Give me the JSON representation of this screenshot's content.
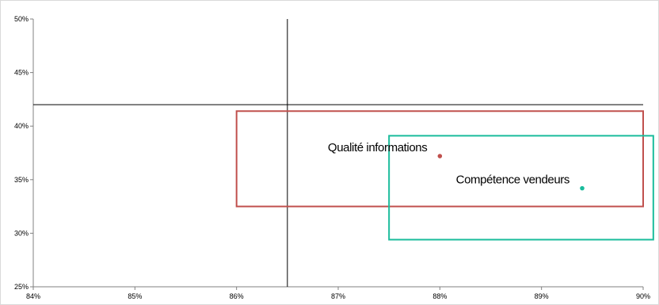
{
  "chart_data": {
    "type": "scatter",
    "title": "",
    "xlabel": "",
    "ylabel": "",
    "xlim": [
      0.84,
      0.9
    ],
    "ylim": [
      0.25,
      0.5
    ],
    "x_ticks": [
      "84%",
      "85%",
      "86%",
      "87%",
      "88%",
      "89%",
      "90%"
    ],
    "y_ticks": [
      "25%",
      "30%",
      "35%",
      "40%",
      "45%",
      "50%"
    ],
    "grid": false,
    "legend": "none",
    "reference_lines": {
      "vertical_x": 0.865,
      "horizontal_y": 0.42
    },
    "points": [
      {
        "label": "Qualité informations",
        "x": 0.88,
        "y": 0.372,
        "color": "#c0504d"
      },
      {
        "label": "Compétence vendeurs",
        "x": 0.894,
        "y": 0.342,
        "color": "#1abc9c"
      }
    ],
    "boxes": [
      {
        "x_range": [
          0.86,
          0.9
        ],
        "y_range": [
          0.325,
          0.414
        ],
        "color": "#c0504d"
      },
      {
        "x_range": [
          0.875,
          0.901
        ],
        "y_range": [
          0.294,
          0.391
        ],
        "color": "#1abc9c"
      }
    ]
  }
}
